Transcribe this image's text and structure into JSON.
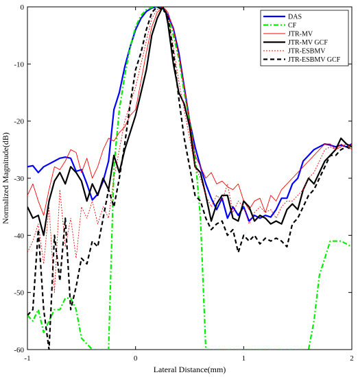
{
  "chart_data": {
    "type": "line",
    "xlabel": "Lateral Distance(mm)",
    "ylabel": "Normalized Magnitude(dB)",
    "xlim": [
      -1,
      2
    ],
    "ylim": [
      -60,
      0
    ],
    "xticks": [
      "-1",
      "0",
      "1",
      "2"
    ],
    "yticks": [
      "0",
      "-10",
      "-20",
      "-30",
      "-40",
      "-50",
      "-60"
    ],
    "grid": false,
    "legend_position": "top-right",
    "series": [
      {
        "name": "DAS",
        "color": "#0000ff",
        "width": 2.2,
        "dash": "solid",
        "x": [
          -1,
          -0.95,
          -0.9,
          -0.85,
          -0.8,
          -0.75,
          -0.7,
          -0.65,
          -0.6,
          -0.55,
          -0.5,
          -0.45,
          -0.4,
          -0.35,
          -0.3,
          -0.25,
          -0.2,
          -0.15,
          -0.1,
          -0.05,
          0,
          0.05,
          0.1,
          0.15,
          0.2,
          0.25,
          0.28,
          0.3,
          0.35,
          0.4,
          0.45,
          0.5,
          0.55,
          0.6,
          0.65,
          0.7,
          0.75,
          0.8,
          0.85,
          0.9,
          0.95,
          1.0,
          1.05,
          1.1,
          1.15,
          1.2,
          1.25,
          1.3,
          1.35,
          1.4,
          1.45,
          1.5,
          1.55,
          1.6,
          1.65,
          1.7,
          1.75,
          1.8,
          1.85,
          1.9,
          1.95,
          2.0
        ],
        "y": [
          -28,
          -27.8,
          -29,
          -28,
          -27.5,
          -27,
          -26.5,
          -26.3,
          -26.5,
          -28.8,
          -28.5,
          -31,
          -33.8,
          -32.8,
          -30.5,
          -27,
          -18,
          -15,
          -10.5,
          -7,
          -4,
          -2,
          -0.8,
          -0.2,
          0,
          -0.3,
          -0.9,
          -1.5,
          -3.8,
          -8,
          -14,
          -20,
          -24.5,
          -28,
          -31,
          -33.5,
          -35.5,
          -33.5,
          -37,
          -35,
          -36.5,
          -35,
          -37.5,
          -36.5,
          -37,
          -36.5,
          -36.8,
          -35.5,
          -33.5,
          -33.5,
          -31,
          -30,
          -27,
          -26,
          -25,
          -24.5,
          -24,
          -24.2,
          -24.5,
          -24.2,
          -24.5,
          -24
        ]
      },
      {
        "name": "CF",
        "color": "#00ee00",
        "width": 2.2,
        "dash": "7,3,2,3",
        "x": [
          -1,
          -0.95,
          -0.9,
          -0.85,
          -0.8,
          -0.75,
          -0.7,
          -0.65,
          -0.6,
          -0.55,
          -0.5,
          -0.45,
          -0.4,
          -0.35,
          -0.3,
          -0.25,
          -0.2,
          -0.15,
          -0.1,
          -0.05,
          0,
          0.05,
          0.1,
          0.15,
          0.2,
          0.25,
          0.28,
          0.3,
          0.35,
          0.4,
          0.45,
          0.5,
          0.55,
          0.6,
          0.65,
          0.7,
          0.75,
          0.8,
          0.85,
          0.9,
          0.95,
          1.0,
          1.05,
          1.1,
          1.2,
          1.3,
          1.4,
          1.5,
          1.55,
          1.6,
          1.65,
          1.7,
          1.75,
          1.8,
          1.85,
          1.9,
          1.95,
          2.0
        ],
        "y": [
          -54,
          -55,
          -53,
          -57,
          -55,
          -53,
          -53,
          -51,
          -51,
          -53,
          -58,
          -59,
          -60,
          -60,
          -60,
          -60,
          -28,
          -18,
          -12,
          -7,
          -3.5,
          -1.5,
          -0.5,
          -0.1,
          0,
          -0.4,
          -1.2,
          -2,
          -5,
          -9,
          -15,
          -20,
          -26,
          -37,
          -60,
          -60,
          -60,
          -60,
          -60,
          -60,
          -60,
          -60,
          -60,
          -60,
          -60,
          -60,
          -60,
          -60,
          -60,
          -60,
          -55,
          -47,
          -44,
          -41,
          -41,
          -41,
          -41.5,
          -42
        ]
      },
      {
        "name": "JTR-MV",
        "color": "#ff0000",
        "width": 0.9,
        "dash": "solid",
        "x": [
          -1,
          -0.95,
          -0.9,
          -0.85,
          -0.8,
          -0.75,
          -0.7,
          -0.65,
          -0.6,
          -0.55,
          -0.5,
          -0.45,
          -0.4,
          -0.35,
          -0.3,
          -0.25,
          -0.2,
          -0.15,
          -0.1,
          -0.05,
          0,
          0.05,
          0.1,
          0.15,
          0.2,
          0.25,
          0.28,
          0.3,
          0.35,
          0.4,
          0.45,
          0.5,
          0.55,
          0.6,
          0.65,
          0.7,
          0.75,
          0.8,
          0.85,
          0.9,
          0.95,
          1.0,
          1.05,
          1.1,
          1.15,
          1.2,
          1.25,
          1.3,
          1.35,
          1.4,
          1.45,
          1.5,
          1.55,
          1.6,
          1.65,
          1.7,
          1.75,
          1.8,
          1.85,
          1.9,
          1.95,
          2.0
        ],
        "y": [
          -33,
          -31,
          -34,
          -36.5,
          -32,
          -28,
          -28.5,
          -27,
          -25,
          -25.5,
          -29,
          -26.5,
          -30,
          -28,
          -25,
          -23,
          -23.5,
          -22,
          -21,
          -19,
          -18,
          -13,
          -8,
          -3.5,
          -1,
          0,
          -0.5,
          -1,
          -4,
          -8.5,
          -14,
          -20,
          -26,
          -28,
          -30,
          -29,
          -31,
          -30.5,
          -31.5,
          -32,
          -31,
          -34,
          -35.5,
          -34,
          -33.5,
          -36,
          -33,
          -34,
          -32,
          -31,
          -30,
          -29,
          -28,
          -27,
          -26,
          -25,
          -24,
          -24,
          -25,
          -24.5,
          -24,
          -25
        ]
      },
      {
        "name": "JTR-MV GCF",
        "color": "#000000",
        "width": 2.2,
        "dash": "solid",
        "x": [
          -1,
          -0.95,
          -0.9,
          -0.85,
          -0.8,
          -0.75,
          -0.7,
          -0.65,
          -0.6,
          -0.55,
          -0.5,
          -0.45,
          -0.4,
          -0.35,
          -0.3,
          -0.25,
          -0.2,
          -0.15,
          -0.1,
          -0.05,
          0,
          0.05,
          0.1,
          0.15,
          0.2,
          0.25,
          0.28,
          0.3,
          0.35,
          0.4,
          0.45,
          0.5,
          0.55,
          0.6,
          0.65,
          0.7,
          0.75,
          0.8,
          0.85,
          0.9,
          0.95,
          1.0,
          1.05,
          1.1,
          1.15,
          1.2,
          1.25,
          1.3,
          1.35,
          1.4,
          1.45,
          1.5,
          1.55,
          1.6,
          1.65,
          1.7,
          1.75,
          1.8,
          1.85,
          1.9,
          1.95,
          2.0
        ],
        "y": [
          -35,
          -37,
          -36.5,
          -40,
          -34,
          -30.5,
          -29,
          -31,
          -28,
          -29,
          -30.5,
          -34,
          -31,
          -33,
          -30,
          -32,
          -26,
          -29,
          -25,
          -22,
          -19,
          -15,
          -11,
          -5,
          -2,
          0,
          -1,
          -3,
          -10,
          -15,
          -17,
          -21,
          -28,
          -29,
          -33,
          -37.5,
          -34.5,
          -33,
          -33,
          -37,
          -37.5,
          -34,
          -35,
          -37.5,
          -36.5,
          -37,
          -38,
          -37.5,
          -38,
          -35.5,
          -34.5,
          -35.5,
          -32,
          -30,
          -31,
          -29,
          -27,
          -26,
          -25,
          -23,
          -24,
          -24.5
        ]
      },
      {
        "name": "JTR-ESBMV",
        "color": "#ff0000",
        "width": 0.9,
        "dash": "2,2",
        "x": [
          -1,
          -0.95,
          -0.9,
          -0.85,
          -0.8,
          -0.75,
          -0.7,
          -0.65,
          -0.6,
          -0.55,
          -0.5,
          -0.45,
          -0.4,
          -0.35,
          -0.3,
          -0.25,
          -0.2,
          -0.15,
          -0.1,
          -0.05,
          0,
          0.05,
          0.1,
          0.15,
          0.2,
          0.25,
          0.28,
          0.3,
          0.35,
          0.4,
          0.45,
          0.5,
          0.55,
          0.6,
          0.65,
          0.7,
          0.75,
          0.8,
          0.85,
          0.9,
          0.95,
          1.0,
          1.05,
          1.1,
          1.15,
          1.2,
          1.25,
          1.3,
          1.35,
          1.4,
          1.45,
          1.5,
          1.55,
          1.6,
          1.65,
          1.7,
          1.75,
          1.8,
          1.85,
          1.9,
          1.95,
          2.0
        ],
        "y": [
          -43,
          -41,
          -38,
          -45,
          -35,
          -50,
          -32,
          -42,
          -37,
          -44,
          -35,
          -37,
          -34,
          -38,
          -35,
          -37,
          -30,
          -25,
          -20,
          -17,
          -14,
          -10,
          -6,
          -2,
          -0.5,
          0,
          -0.5,
          -1.5,
          -7,
          -13,
          -18,
          -23,
          -28,
          -30,
          -33,
          -35,
          -33,
          -34,
          -31,
          -36,
          -34,
          -35,
          -38,
          -36,
          -35,
          -36,
          -35.5,
          -37,
          -35,
          -34,
          -34,
          -33,
          -32,
          -30,
          -29,
          -27,
          -25,
          -24.5,
          -25,
          -24,
          -24.5,
          -24
        ]
      },
      {
        "name": "JTR-ESBMV GCF",
        "color": "#000000",
        "width": 2.2,
        "dash": "6,4",
        "x": [
          -1,
          -0.95,
          -0.9,
          -0.85,
          -0.8,
          -0.75,
          -0.7,
          -0.65,
          -0.6,
          -0.55,
          -0.5,
          -0.45,
          -0.4,
          -0.35,
          -0.3,
          -0.25,
          -0.2,
          -0.15,
          -0.1,
          -0.05,
          0,
          0.05,
          0.1,
          0.15,
          0.2,
          0.25,
          0.28,
          0.3,
          0.35,
          0.4,
          0.45,
          0.5,
          0.55,
          0.6,
          0.65,
          0.7,
          0.75,
          0.8,
          0.85,
          0.9,
          0.95,
          1.0,
          1.05,
          1.1,
          1.15,
          1.2,
          1.25,
          1.3,
          1.35,
          1.4,
          1.45,
          1.5,
          1.55,
          1.6,
          1.65,
          1.7,
          1.75,
          1.8,
          1.85,
          1.9,
          1.95,
          2.0
        ],
        "y": [
          -54,
          -53,
          -39,
          -53,
          -60,
          -40,
          -48,
          -37,
          -53,
          -49,
          -44,
          -45,
          -41,
          -42,
          -37,
          -32,
          -35,
          -30,
          -24,
          -17,
          -11,
          -8,
          -4,
          -1,
          0,
          -0.5,
          -1,
          -2,
          -8,
          -16,
          -23,
          -28,
          -33,
          -34,
          -37,
          -39,
          -38,
          -37.5,
          -40,
          -39,
          -43,
          -40,
          -41,
          -40,
          -41.5,
          -40.5,
          -41,
          -40.5,
          -41,
          -42,
          -38,
          -37,
          -35,
          -33,
          -32,
          -30,
          -28,
          -26,
          -26,
          -25,
          -24.5,
          -25
        ]
      }
    ]
  }
}
